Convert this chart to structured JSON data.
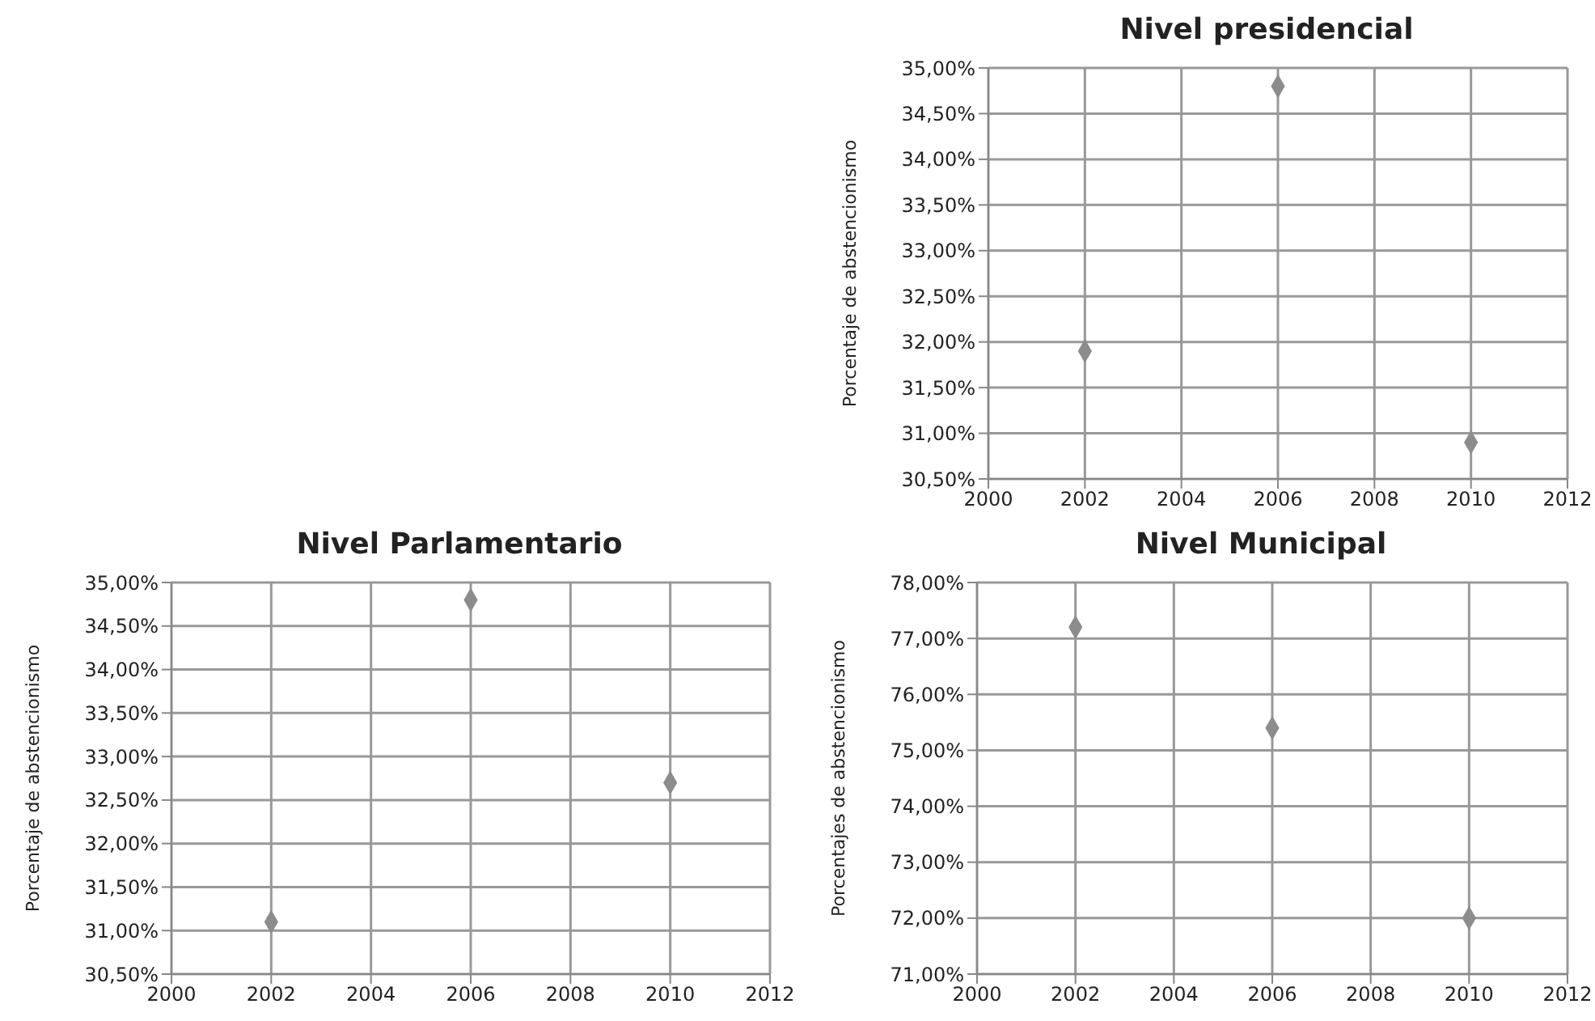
{
  "chart_data": [
    {
      "type": "scatter",
      "title": "Nivel presidencial",
      "ylabel": "Porcentaje de abstencionismo",
      "x": [
        2002,
        2006,
        2010
      ],
      "values": [
        31.9,
        34.8,
        30.9
      ],
      "color": "#8c8c8c",
      "marker": "diamond",
      "grid": true,
      "legend": false,
      "xlim": [
        2000,
        2012
      ],
      "xticks": [
        2000,
        2002,
        2004,
        2006,
        2008,
        2010,
        2012
      ],
      "ylim": [
        30.5,
        35
      ],
      "yticks": [
        {
          "value": 30.5,
          "label": "30,50%"
        },
        {
          "value": 31,
          "label": "31,00%"
        },
        {
          "value": 31.5,
          "label": "31,50%"
        },
        {
          "value": 32,
          "label": "32,00%"
        },
        {
          "value": 32.5,
          "label": "32,50%"
        },
        {
          "value": 33,
          "label": "33,00%"
        },
        {
          "value": 33.5,
          "label": "33,50%"
        },
        {
          "value": 34,
          "label": "34,00%"
        },
        {
          "value": 34.5,
          "label": "34,50%"
        },
        {
          "value": 35,
          "label": "35,00%"
        }
      ]
    },
    {
      "type": "scatter",
      "title": "Nivel Parlamentario",
      "ylabel": "Porcentaje de abstencionismo",
      "x": [
        2002,
        2006,
        2010
      ],
      "values": [
        31.1,
        34.8,
        32.7
      ],
      "color": "#8c8c8c",
      "marker": "diamond",
      "grid": true,
      "legend": false,
      "xlim": [
        2000,
        2012
      ],
      "xticks": [
        2000,
        2002,
        2004,
        2006,
        2008,
        2010,
        2012
      ],
      "ylim": [
        30.5,
        35
      ],
      "yticks": [
        {
          "value": 30.5,
          "label": "30,50%"
        },
        {
          "value": 31,
          "label": "31,00%"
        },
        {
          "value": 31.5,
          "label": "31,50%"
        },
        {
          "value": 32,
          "label": "32,00%"
        },
        {
          "value": 32.5,
          "label": "32,50%"
        },
        {
          "value": 33,
          "label": "33,00%"
        },
        {
          "value": 33.5,
          "label": "33,50%"
        },
        {
          "value": 34,
          "label": "34,00%"
        },
        {
          "value": 34.5,
          "label": "34,50%"
        },
        {
          "value": 35,
          "label": "35,00%"
        }
      ]
    },
    {
      "type": "scatter",
      "title": "Nivel Municipal",
      "ylabel": "Porcentajes de abstencionismo",
      "x": [
        2002,
        2006,
        2010
      ],
      "values": [
        77.2,
        75.4,
        72.0
      ],
      "color": "#8c8c8c",
      "marker": "diamond",
      "grid": true,
      "legend": false,
      "xlim": [
        2000,
        2012
      ],
      "xticks": [
        2000,
        2002,
        2004,
        2006,
        2008,
        2010,
        2012
      ],
      "ylim": [
        71,
        78
      ],
      "yticks": [
        {
          "value": 71,
          "label": "71,00%"
        },
        {
          "value": 72,
          "label": "72,00%"
        },
        {
          "value": 73,
          "label": "73,00%"
        },
        {
          "value": 74,
          "label": "74,00%"
        },
        {
          "value": 75,
          "label": "75,00%"
        },
        {
          "value": 76,
          "label": "76,00%"
        },
        {
          "value": 77,
          "label": "77,00%"
        },
        {
          "value": 78,
          "label": "78,00%"
        }
      ]
    }
  ]
}
